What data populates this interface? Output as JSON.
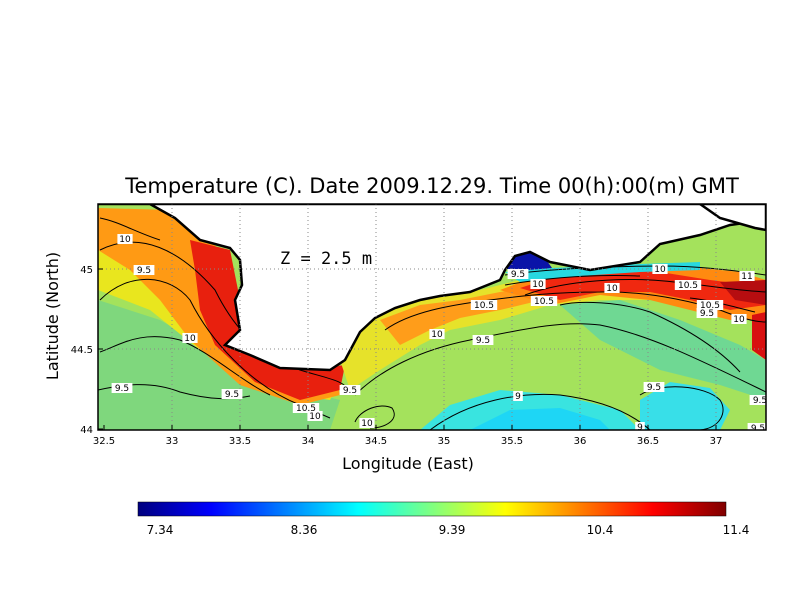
{
  "title": "Temperature (C). Date 2009.12.29. Time 00(h):00(m) GMT",
  "xlabel": "Longitude (East)",
  "ylabel": "Latitude (North)",
  "annotation": "Z = 2.5 m",
  "x_ticks": [
    "32.5",
    "33",
    "33.5",
    "34",
    "34.5",
    "35",
    "35.5",
    "36",
    "36.5",
    "37"
  ],
  "y_ticks": [
    "44",
    "44.5",
    "45"
  ],
  "colorbar": {
    "ticks": [
      "7.34",
      "8.36",
      "9.39",
      "10.4",
      "11.4"
    ],
    "colors": [
      "#00007f",
      "#0000ff",
      "#0080ff",
      "#00ffff",
      "#80ff80",
      "#ffff00",
      "#ff8000",
      "#ff0000",
      "#800000"
    ]
  },
  "contour_labels": [
    "10",
    "9.5",
    "10",
    "9.5",
    "9.5",
    "10.5",
    "10",
    "9.5",
    "10",
    "10",
    "10.5",
    "9.5",
    "10",
    "9.5",
    "10",
    "10.5",
    "10",
    "11",
    "10.5",
    "10.5",
    "9.5",
    "10",
    "9",
    "9.5",
    "9",
    "9.5",
    "9.5"
  ],
  "chart_data": {
    "type": "heatmap",
    "title": "Temperature (C). Date 2009.12.29. Time 00(h):00(m) GMT",
    "xlabel": "Longitude (East)",
    "ylabel": "Latitude (North)",
    "xlim": [
      32.5,
      37.3
    ],
    "ylim": [
      44.0,
      45.4
    ],
    "value_range": [
      7.34,
      11.4
    ],
    "depth": "Z = 2.5 m",
    "contour_levels": [
      9,
      9.5,
      10,
      10.5,
      11
    ],
    "grid": true
  }
}
